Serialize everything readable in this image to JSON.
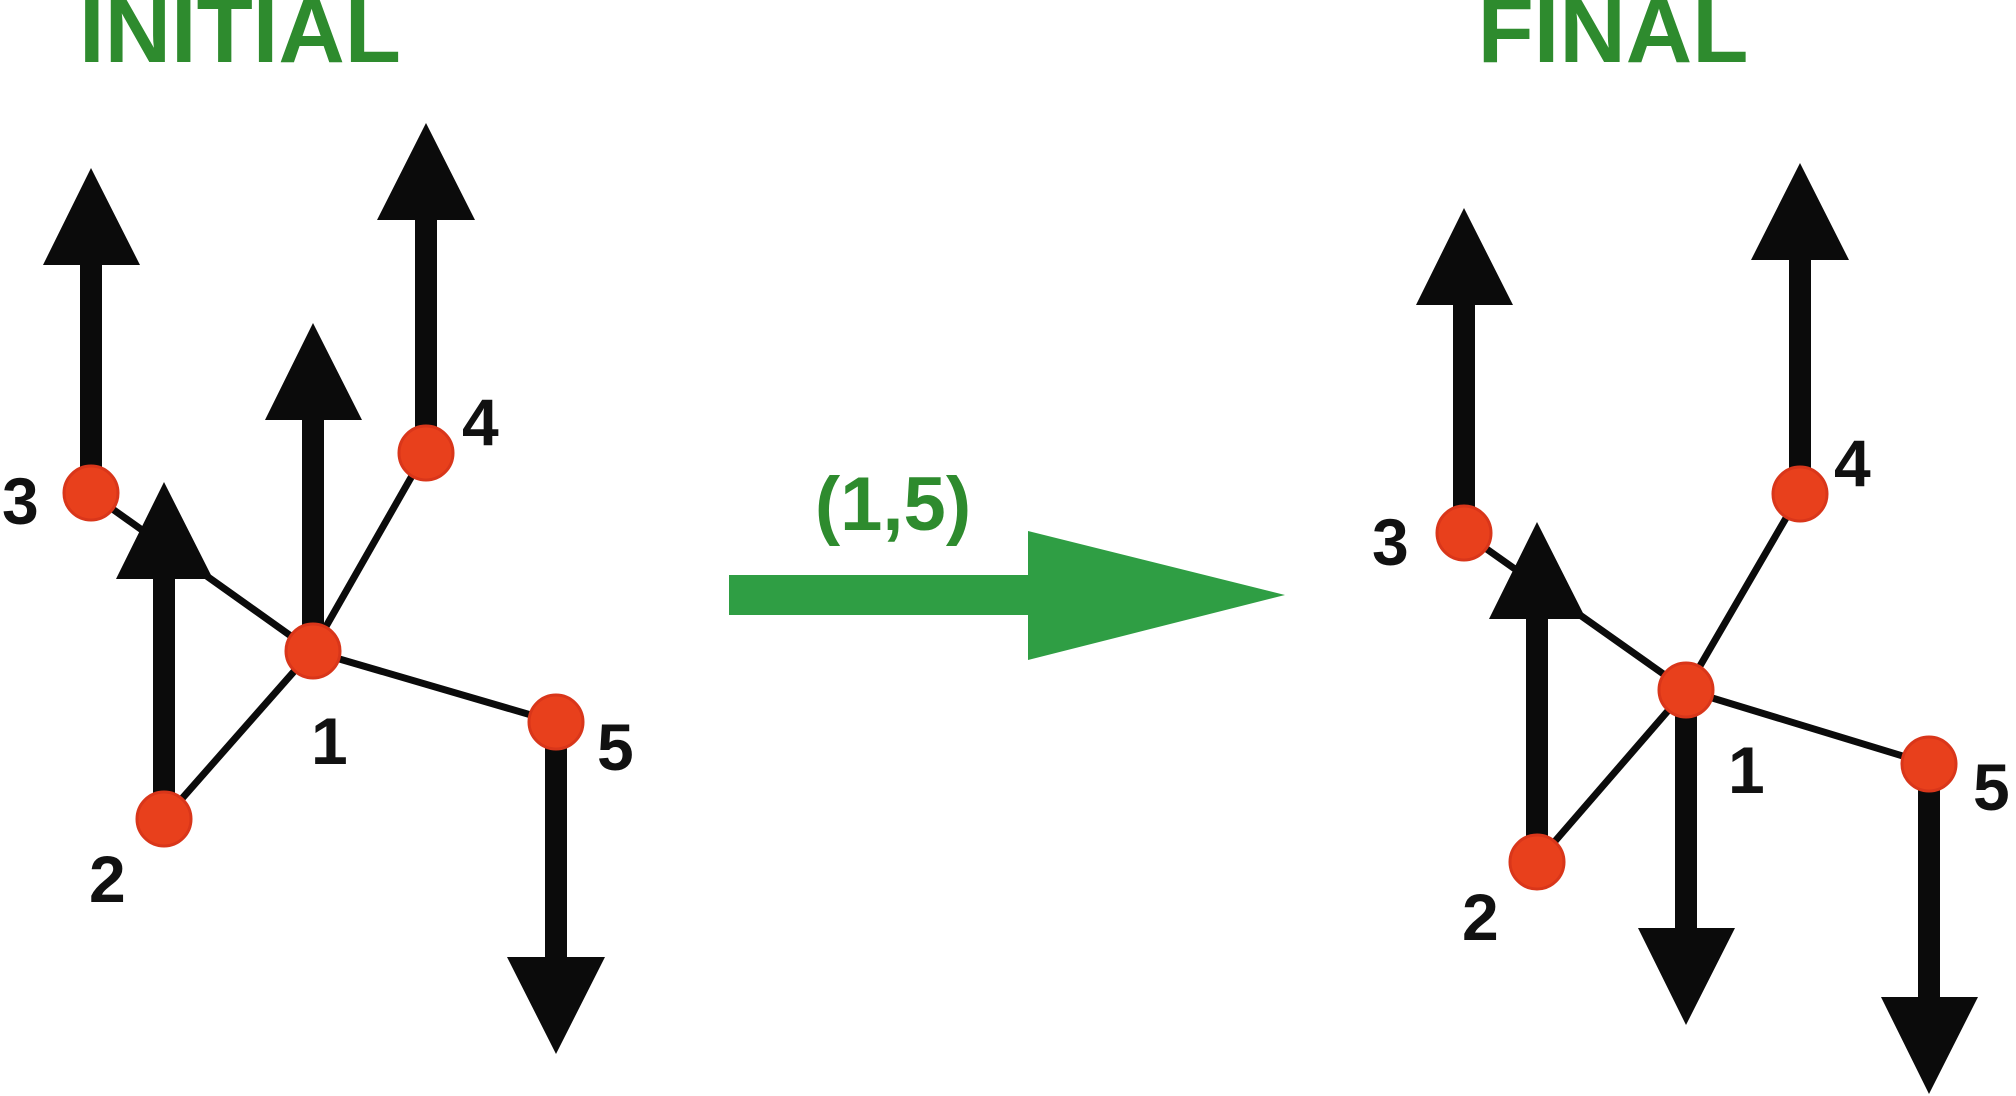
{
  "panels": {
    "initial": {
      "title": "INITIAL",
      "node_labels": [
        "1",
        "2",
        "3",
        "4",
        "5"
      ],
      "spins": {
        "1": "up",
        "2": "up",
        "3": "up",
        "4": "up",
        "5": "down"
      }
    },
    "final": {
      "title": "FINAL",
      "node_labels": [
        "1",
        "2",
        "3",
        "4",
        "5"
      ],
      "spins": {
        "1": "down",
        "2": "up",
        "3": "up",
        "4": "up",
        "5": "down"
      }
    }
  },
  "transition": {
    "label": "(1,5)"
  },
  "edges": [
    [
      1,
      2
    ],
    [
      1,
      3
    ],
    [
      1,
      4
    ],
    [
      1,
      5
    ]
  ],
  "colors": {
    "title": "#2e8b2e",
    "transition_arrow": "#2f9e44",
    "node_fill": "#e8401c",
    "node_stroke": "#d9361a",
    "arrow": "#0b0b0b",
    "edge": "#0b0b0b",
    "label": "#111111"
  }
}
